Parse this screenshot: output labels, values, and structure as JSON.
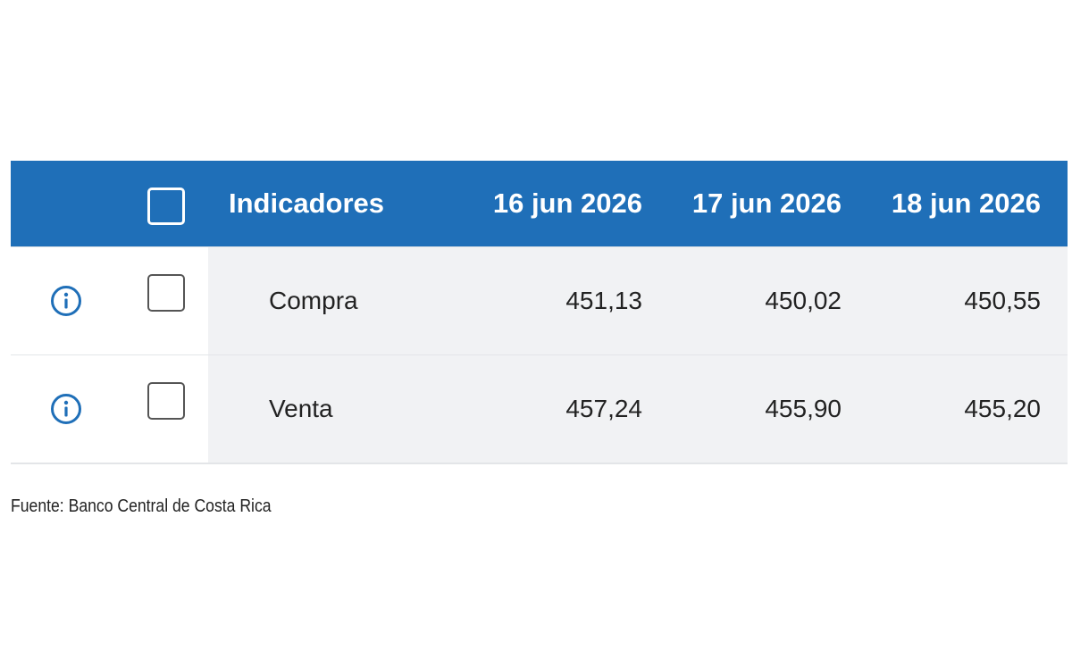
{
  "table": {
    "header": [
      "Indicadores",
      "16 jun 2026",
      "17 jun 2026",
      "18 jun 2026"
    ],
    "rows": [
      [
        "Compra",
        "451,13",
        "450,02",
        "450,55"
      ],
      [
        "Venta",
        "457,24",
        "455,90",
        "455,20"
      ]
    ]
  },
  "footer": {
    "source": "Fuente: Banco Central de Costa Rica"
  }
}
